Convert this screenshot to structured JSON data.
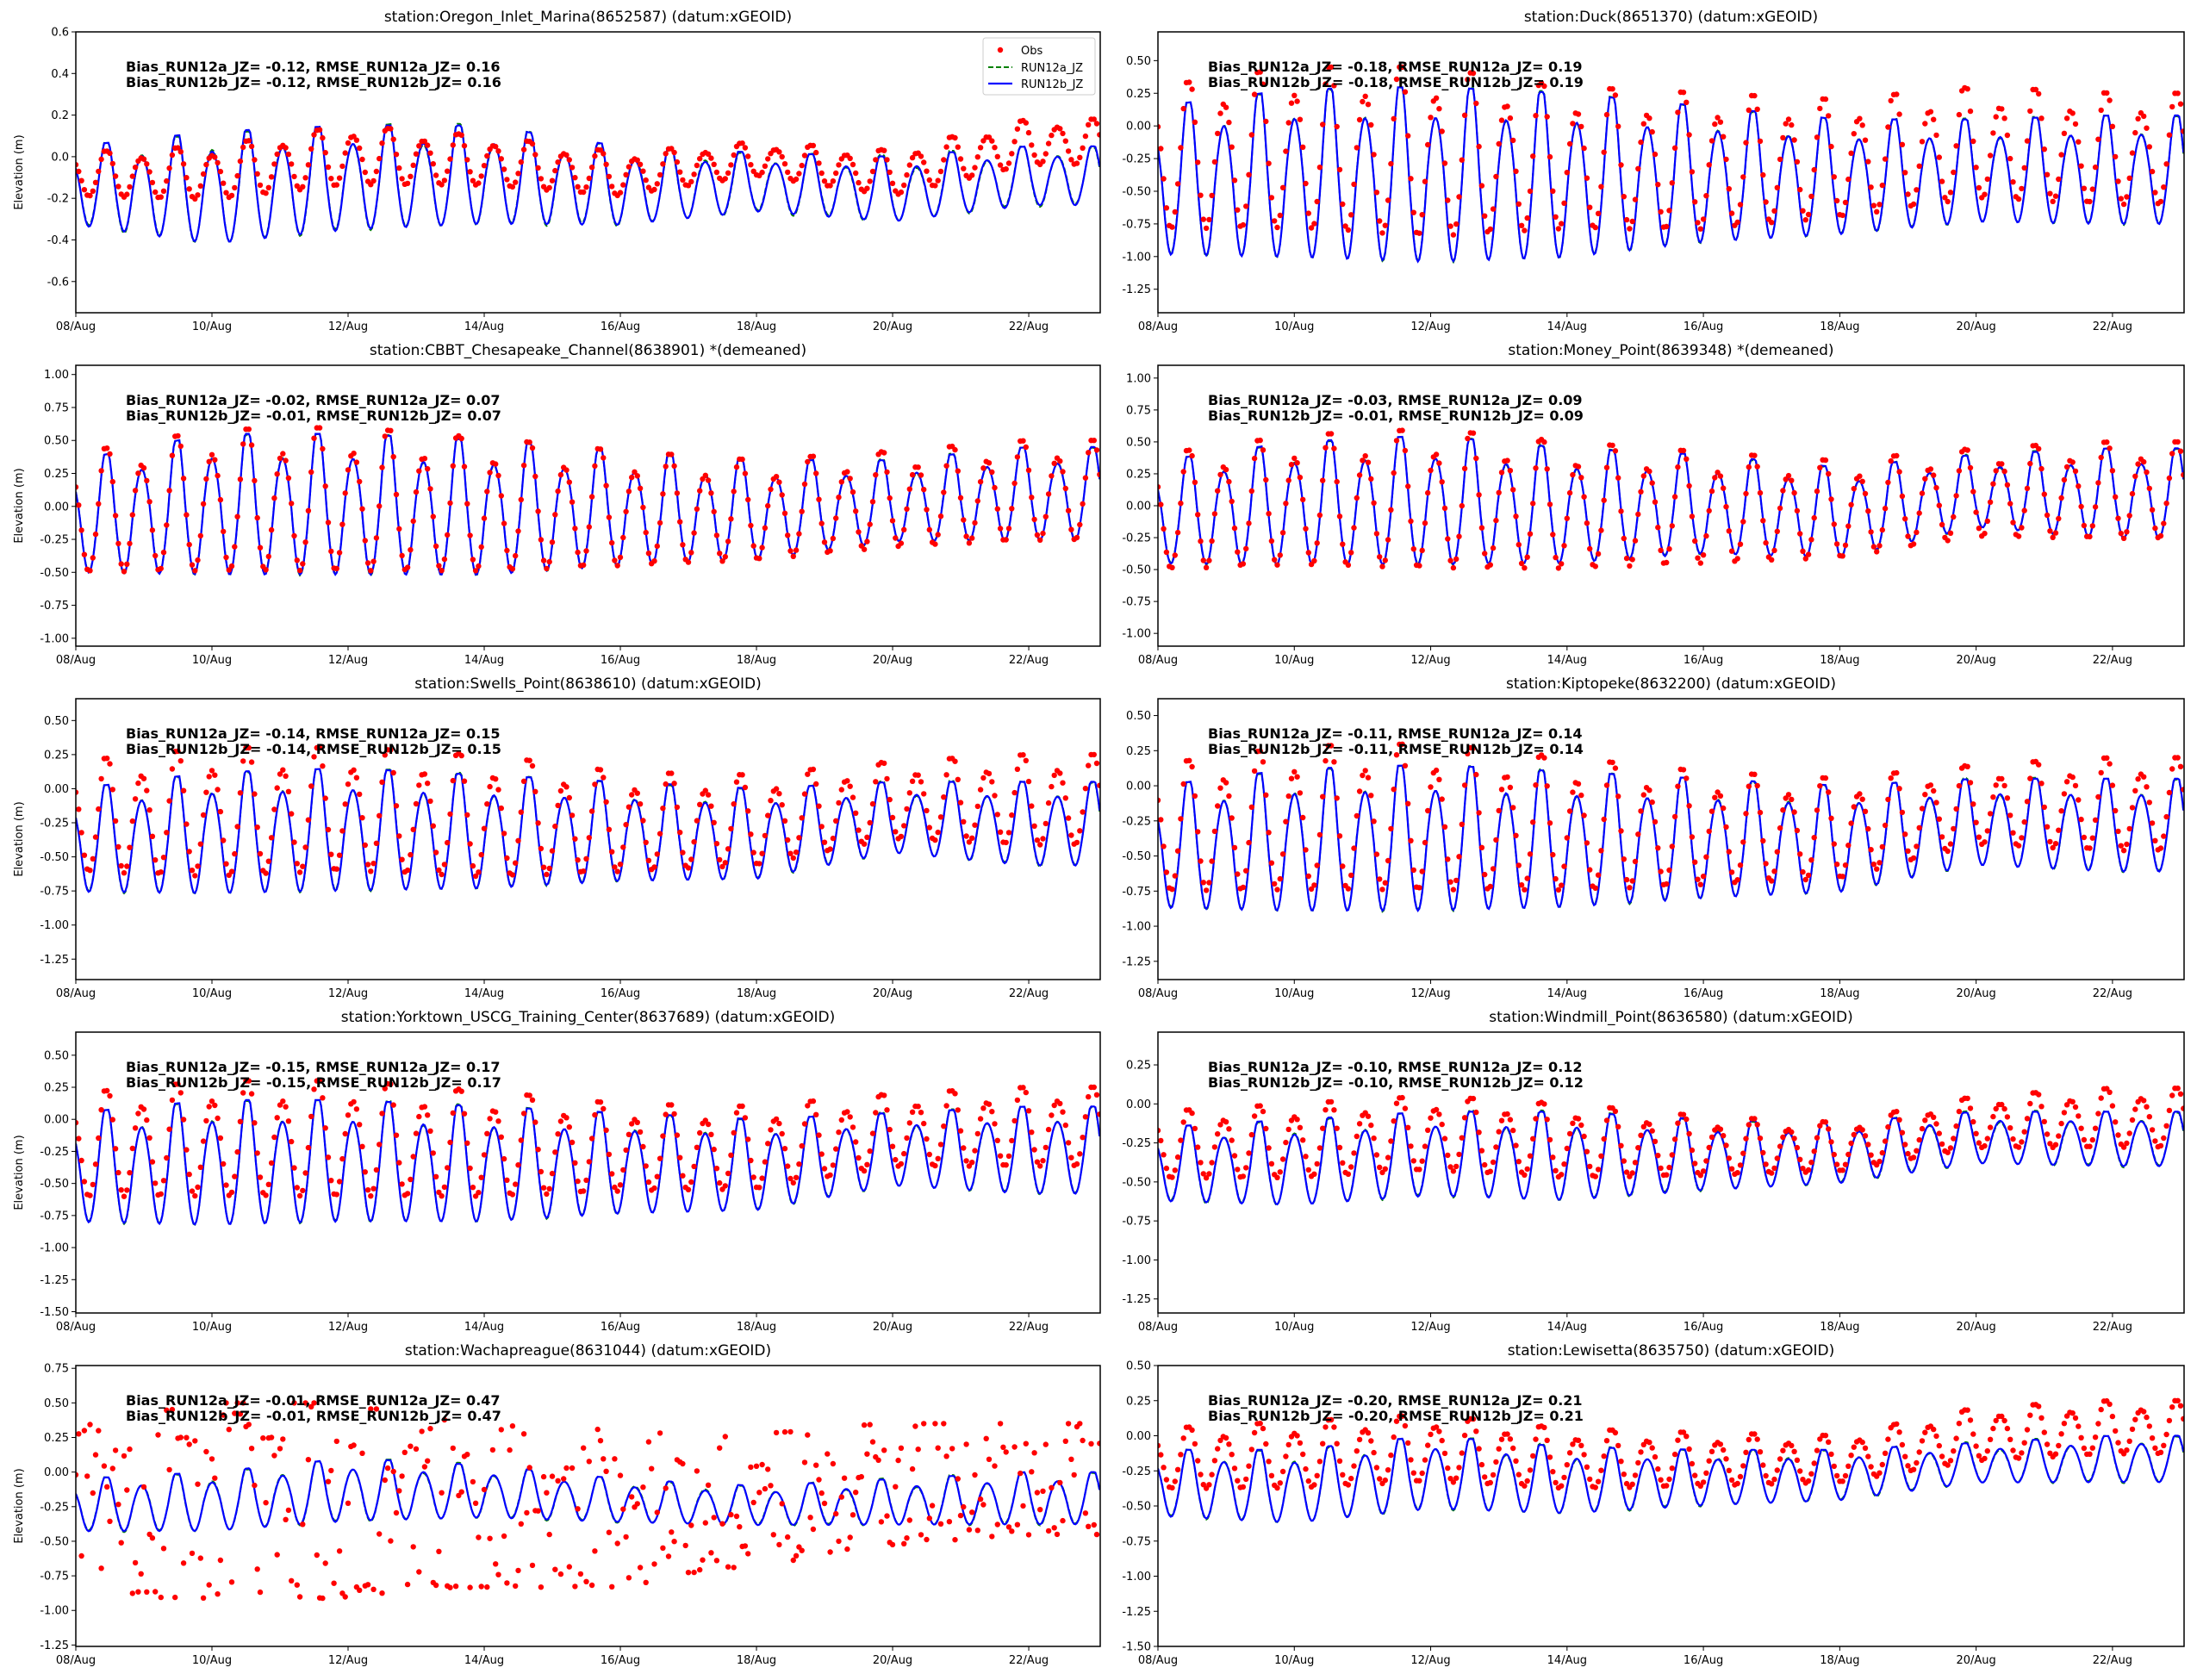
{
  "legend": {
    "obs": "Obs",
    "run_a": "RUN12a_JZ",
    "run_b": "RUN12b_JZ"
  },
  "colors": {
    "obs": "#ff0000",
    "run_a": "#008000",
    "run_b": "#0000ff"
  },
  "ylabel": "Elevation (m)",
  "chart_data": [
    {
      "type": "line",
      "title": "station:Oregon_Inlet_Marina(8652587) (datum:xGEOID)",
      "stats": [
        "Bias_RUN12a_JZ= -0.12, RMSE_RUN12a_JZ=  0.16",
        "Bias_RUN12b_JZ= -0.12, RMSE_RUN12b_JZ=  0.16"
      ],
      "ylim": [
        -0.75,
        0.6
      ],
      "yticks": [
        -0.6,
        -0.4,
        -0.2,
        0.0,
        0.2,
        0.4,
        0.6
      ],
      "ytick_labels": [
        "-0.6",
        "-0.4",
        "-0.2",
        "0.0",
        "0.2",
        "0.4",
        "0.6"
      ],
      "legend": true,
      "model_high": [
        0.05,
        0.12,
        0.15,
        0.15,
        0.05,
        0.02,
        0.0,
        0.05
      ],
      "model_low": [
        -0.35,
        -0.45,
        -0.38,
        -0.35,
        -0.35,
        -0.28,
        -0.33,
        -0.25
      ],
      "obs_high": [
        0.02,
        0.05,
        0.15,
        0.1,
        0.02,
        0.07,
        0.03,
        0.18
      ],
      "obs_low": [
        -0.2,
        -0.22,
        -0.15,
        -0.15,
        -0.2,
        -0.1,
        -0.2,
        -0.05
      ],
      "obs_pattern": "regular"
    },
    {
      "type": "line",
      "title": "station:Duck(8651370) (datum:xGEOID)",
      "stats": [
        "Bias_RUN12a_JZ= -0.18, RMSE_RUN12a_JZ=  0.19",
        "Bias_RUN12b_JZ= -0.18, RMSE_RUN12b_JZ=  0.19"
      ],
      "ylim": [
        -1.43,
        0.72
      ],
      "yticks": [
        -1.25,
        -1.0,
        -0.75,
        -0.5,
        -0.25,
        0.0,
        0.25,
        0.5
      ],
      "ytick_labels": [
        "-1.25",
        "-1.00",
        "-0.75",
        "-0.50",
        "-0.25",
        "0.00",
        "0.25",
        "0.50"
      ],
      "legend": false,
      "model_high": [
        0.15,
        0.28,
        0.3,
        0.25,
        0.15,
        0.05,
        0.05,
        0.08
      ],
      "model_low": [
        -1.05,
        -1.08,
        -1.12,
        -1.08,
        -0.95,
        -0.88,
        -0.78,
        -0.8
      ],
      "obs_high": [
        0.3,
        0.45,
        0.45,
        0.3,
        0.25,
        0.2,
        0.3,
        0.25
      ],
      "obs_low": [
        -0.85,
        -0.85,
        -0.92,
        -0.85,
        -0.85,
        -0.75,
        -0.6,
        -0.65
      ],
      "obs_pattern": "regular"
    },
    {
      "type": "line",
      "title": "station:CBBT_Chesapeake_Channel(8638901) *(demeaned)",
      "stats": [
        "Bias_RUN12a_JZ= -0.02, RMSE_RUN12a_JZ=  0.07",
        "Bias_RUN12b_JZ= -0.01, RMSE_RUN12b_JZ=  0.07"
      ],
      "ylim": [
        -1.06,
        1.07
      ],
      "yticks": [
        -1.0,
        -0.75,
        -0.5,
        -0.25,
        0.0,
        0.25,
        0.5,
        0.75,
        1.0
      ],
      "ytick_labels": [
        "-1.00",
        "-0.75",
        "-0.50",
        "-0.25",
        "0.00",
        "0.25",
        "0.50",
        "0.75",
        "1.00"
      ],
      "legend": false,
      "model_high": [
        0.35,
        0.55,
        0.55,
        0.5,
        0.42,
        0.35,
        0.35,
        0.45
      ],
      "model_low": [
        -0.55,
        -0.58,
        -0.58,
        -0.58,
        -0.5,
        -0.45,
        -0.3,
        -0.3
      ],
      "obs_high": [
        0.4,
        0.58,
        0.6,
        0.52,
        0.42,
        0.35,
        0.42,
        0.5
      ],
      "obs_low": [
        -0.55,
        -0.55,
        -0.55,
        -0.55,
        -0.5,
        -0.45,
        -0.35,
        -0.3
      ],
      "obs_pattern": "regular"
    },
    {
      "type": "line",
      "title": "station:Money_Point(8639348) *(demeaned)",
      "stats": [
        "Bias_RUN12a_JZ= -0.03, RMSE_RUN12a_JZ=  0.09",
        "Bias_RUN12b_JZ= -0.01, RMSE_RUN12b_JZ=  0.09"
      ],
      "ylim": [
        -1.1,
        1.1
      ],
      "yticks": [
        -1.0,
        -0.75,
        -0.5,
        -0.25,
        0.0,
        0.25,
        0.5,
        0.75,
        1.0
      ],
      "ytick_labels": [
        "-1.00",
        "-0.75",
        "-0.50",
        "-0.25",
        "0.00",
        "0.25",
        "0.50",
        "0.75",
        "1.00"
      ],
      "legend": false,
      "model_high": [
        0.35,
        0.5,
        0.55,
        0.45,
        0.4,
        0.3,
        0.4,
        0.45
      ],
      "model_low": [
        -0.5,
        -0.52,
        -0.52,
        -0.5,
        -0.42,
        -0.45,
        -0.2,
        -0.3
      ],
      "obs_high": [
        0.4,
        0.55,
        0.6,
        0.5,
        0.42,
        0.35,
        0.45,
        0.5
      ],
      "obs_low": [
        -0.55,
        -0.52,
        -0.55,
        -0.55,
        -0.5,
        -0.45,
        -0.28,
        -0.3
      ],
      "obs_pattern": "regular"
    },
    {
      "type": "line",
      "title": "station:Swells_Point(8638610) (datum:xGEOID)",
      "stats": [
        "Bias_RUN12a_JZ= -0.14, RMSE_RUN12a_JZ=  0.15",
        "Bias_RUN12b_JZ= -0.14, RMSE_RUN12b_JZ=  0.15"
      ],
      "ylim": [
        -1.4,
        0.66
      ],
      "yticks": [
        -1.25,
        -1.0,
        -0.75,
        -0.5,
        -0.25,
        0.0,
        0.25,
        0.5
      ],
      "ytick_labels": [
        "-1.25",
        "-1.00",
        "-0.75",
        "-0.50",
        "-0.25",
        "0.00",
        "0.25",
        "0.50"
      ],
      "legend": false,
      "model_high": [
        0.0,
        0.12,
        0.15,
        0.1,
        0.05,
        0.0,
        0.05,
        0.05
      ],
      "model_low": [
        -0.8,
        -0.82,
        -0.8,
        -0.78,
        -0.72,
        -0.7,
        -0.5,
        -0.6
      ],
      "obs_high": [
        0.2,
        0.3,
        0.3,
        0.25,
        0.12,
        0.1,
        0.2,
        0.25
      ],
      "obs_low": [
        -0.65,
        -0.7,
        -0.65,
        -0.7,
        -0.65,
        -0.6,
        -0.4,
        -0.45
      ],
      "obs_pattern": "regular"
    },
    {
      "type": "line",
      "title": "station:Kiptopeke(8632200) (datum:xGEOID)",
      "stats": [
        "Bias_RUN12a_JZ= -0.11, RMSE_RUN12a_JZ=  0.14",
        "Bias_RUN12b_JZ= -0.11, RMSE_RUN12b_JZ=  0.14"
      ],
      "ylim": [
        -1.38,
        0.62
      ],
      "yticks": [
        -1.25,
        -1.0,
        -0.75,
        -0.5,
        -0.25,
        0.0,
        0.25,
        0.5
      ],
      "ytick_labels": [
        "-1.25",
        "-1.00",
        "-0.75",
        "-0.50",
        "-0.25",
        "0.00",
        "0.25",
        "0.50"
      ],
      "legend": false,
      "model_high": [
        0.0,
        0.12,
        0.15,
        0.1,
        0.05,
        0.0,
        0.05,
        0.05
      ],
      "model_low": [
        -0.92,
        -0.95,
        -0.95,
        -0.92,
        -0.85,
        -0.8,
        -0.6,
        -0.65
      ],
      "obs_high": [
        0.15,
        0.28,
        0.3,
        0.2,
        0.1,
        0.05,
        0.15,
        0.2
      ],
      "obs_low": [
        -0.8,
        -0.8,
        -0.8,
        -0.8,
        -0.75,
        -0.7,
        -0.45,
        -0.5
      ],
      "obs_pattern": "regular"
    },
    {
      "type": "line",
      "title": "station:Yorktown_USCG_Training_Center(8637689) (datum:xGEOID)",
      "stats": [
        "Bias_RUN12a_JZ= -0.15, RMSE_RUN12a_JZ=  0.17",
        "Bias_RUN12b_JZ= -0.15, RMSE_RUN12b_JZ=  0.17"
      ],
      "ylim": [
        -1.51,
        0.68
      ],
      "yticks": [
        -1.5,
        -1.25,
        -1.0,
        -0.75,
        -0.5,
        -0.25,
        0.0,
        0.25,
        0.5
      ],
      "ytick_labels": [
        "-1.50",
        "-1.25",
        "-1.00",
        "-0.75",
        "-0.50",
        "-0.25",
        "0.00",
        "0.25",
        "0.50"
      ],
      "legend": false,
      "model_high": [
        0.05,
        0.15,
        0.15,
        0.1,
        0.05,
        0.0,
        0.05,
        0.1
      ],
      "model_low": [
        -0.85,
        -0.88,
        -0.85,
        -0.85,
        -0.78,
        -0.75,
        -0.55,
        -0.62
      ],
      "obs_high": [
        0.2,
        0.3,
        0.3,
        0.22,
        0.12,
        0.1,
        0.2,
        0.25
      ],
      "obs_low": [
        -0.65,
        -0.65,
        -0.65,
        -0.65,
        -0.6,
        -0.58,
        -0.4,
        -0.4
      ],
      "obs_pattern": "regular"
    },
    {
      "type": "line",
      "title": "station:Windmill_Point(8636580) (datum:xGEOID)",
      "stats": [
        "Bias_RUN12a_JZ= -0.10, RMSE_RUN12a_JZ=  0.12",
        "Bias_RUN12b_JZ= -0.10, RMSE_RUN12b_JZ=  0.12"
      ],
      "ylim": [
        -1.34,
        0.46
      ],
      "yticks": [
        -1.25,
        -1.0,
        -0.75,
        -0.5,
        -0.25,
        0.0,
        0.25
      ],
      "ytick_labels": [
        "-1.25",
        "-1.00",
        "-0.75",
        "-0.50",
        "-0.25",
        "0.00",
        "0.25"
      ],
      "legend": false,
      "model_high": [
        -0.15,
        -0.1,
        -0.05,
        -0.05,
        -0.1,
        -0.12,
        -0.05,
        -0.05
      ],
      "model_low": [
        -0.65,
        -0.68,
        -0.62,
        -0.65,
        -0.58,
        -0.53,
        -0.4,
        -0.42
      ],
      "obs_high": [
        -0.05,
        0.0,
        0.05,
        0.0,
        -0.08,
        -0.12,
        0.05,
        0.1
      ],
      "obs_low": [
        -0.5,
        -0.5,
        -0.45,
        -0.5,
        -0.48,
        -0.45,
        -0.3,
        -0.3
      ],
      "obs_pattern": "regular"
    },
    {
      "type": "line",
      "title": "station:Wachapreague(8631044) (datum:xGEOID)",
      "stats": [
        "Bias_RUN12a_JZ= -0.01, RMSE_RUN12a_JZ=  0.47",
        "Bias_RUN12b_JZ= -0.01, RMSE_RUN12b_JZ=  0.47"
      ],
      "ylim": [
        -1.26,
        0.77
      ],
      "yticks": [
        -1.25,
        -1.0,
        -0.75,
        -0.5,
        -0.25,
        0.0,
        0.25,
        0.5,
        0.75
      ],
      "ytick_labels": [
        "-1.25",
        "-1.00",
        "-0.75",
        "-0.50",
        "-0.25",
        "0.00",
        "0.25",
        "0.50",
        "0.75"
      ],
      "legend": false,
      "model_high": [
        -0.05,
        0.0,
        0.1,
        0.05,
        -0.05,
        -0.1,
        -0.05,
        0.0
      ],
      "model_low": [
        -0.45,
        -0.45,
        -0.38,
        -0.35,
        -0.38,
        -0.4,
        -0.4,
        -0.4
      ],
      "obs_high": [
        0.3,
        0.5,
        0.5,
        0.35,
        0.3,
        0.25,
        0.35,
        0.35
      ],
      "obs_low": [
        -0.9,
        -1.0,
        -1.0,
        -0.9,
        -0.9,
        -0.75,
        -0.6,
        -0.5
      ],
      "obs_pattern": "scattered"
    },
    {
      "type": "line",
      "title": "station:Lewisetta(8635750) (datum:xGEOID)",
      "stats": [
        "Bias_RUN12a_JZ= -0.20, RMSE_RUN12a_JZ=  0.21",
        "Bias_RUN12b_JZ= -0.20, RMSE_RUN12b_JZ=  0.21"
      ],
      "ylim": [
        -1.5,
        0.5
      ],
      "yticks": [
        -1.5,
        -1.25,
        -1.0,
        -0.75,
        -0.5,
        -0.25,
        0.0,
        0.25,
        0.5
      ],
      "ytick_labels": [
        "-1.50",
        "-1.25",
        "-1.00",
        "-0.75",
        "-0.50",
        "-0.25",
        "0.00",
        "0.25",
        "0.50"
      ],
      "legend": false,
      "model_high": [
        -0.1,
        -0.1,
        0.0,
        -0.08,
        -0.1,
        -0.1,
        -0.05,
        0.0
      ],
      "model_low": [
        -0.6,
        -0.65,
        -0.55,
        -0.58,
        -0.52,
        -0.48,
        -0.35,
        -0.35
      ],
      "obs_high": [
        0.05,
        0.1,
        0.15,
        0.05,
        0.02,
        0.0,
        0.2,
        0.25
      ],
      "obs_low": [
        -0.4,
        -0.4,
        -0.35,
        -0.4,
        -0.38,
        -0.35,
        -0.2,
        -0.15
      ],
      "obs_pattern": "regular"
    }
  ],
  "shared_x": {
    "xlim_days_from_08Aug": [
      0,
      15.05
    ],
    "high_low_sample_days": [
      0,
      2,
      4,
      6,
      8,
      10,
      12,
      14
    ],
    "xticks_days": [
      0,
      2,
      4,
      6,
      8,
      10,
      12,
      14
    ],
    "xtick_labels": [
      "08/Aug",
      "10/Aug",
      "12/Aug",
      "14/Aug",
      "16/Aug",
      "18/Aug",
      "20/Aug",
      "22/Aug"
    ],
    "tidal_period_days": 0.5175,
    "first_high_day": 0.45,
    "diurnal_inequality": 0.25,
    "obs_interval_hours": 1
  }
}
